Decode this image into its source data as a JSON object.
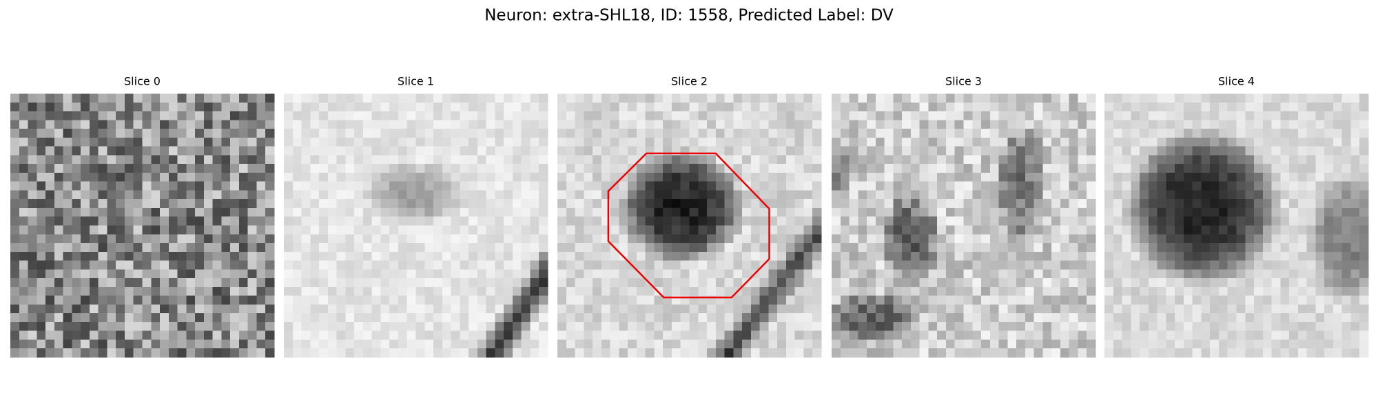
{
  "title": "Neuron: extra-SHL18, ID: 1558, Predicted Label: DV",
  "panels": [
    {
      "title": "Slice 0"
    },
    {
      "title": "Slice 1"
    },
    {
      "title": "Slice 2"
    },
    {
      "title": "Slice 3"
    },
    {
      "title": "Slice 4"
    }
  ]
}
